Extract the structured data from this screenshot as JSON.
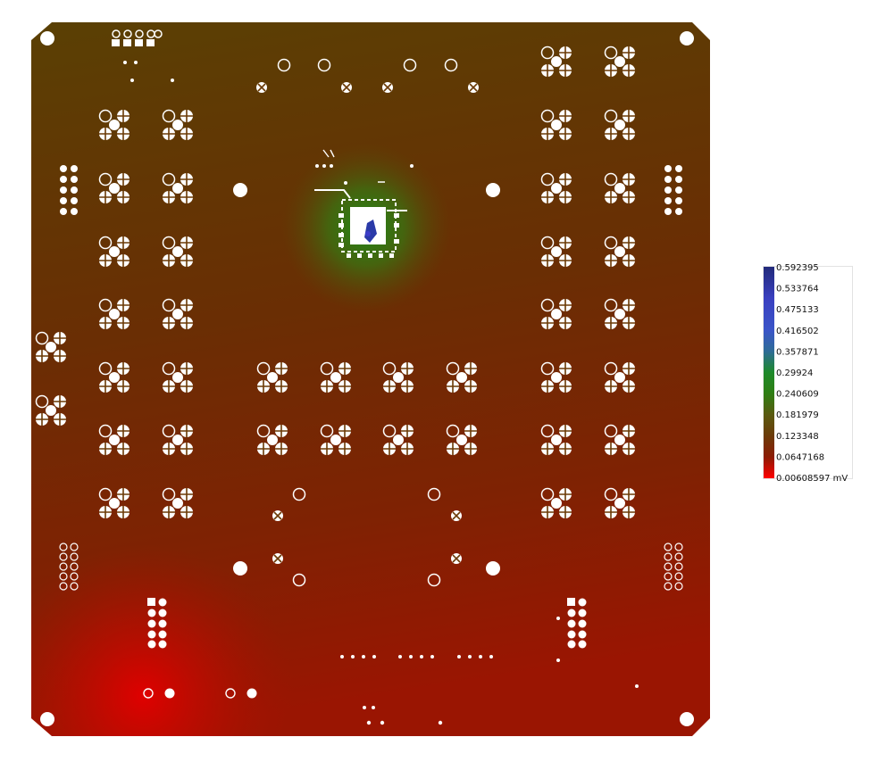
{
  "legend": {
    "ticks": [
      "0.592395",
      "0.533764",
      "0.475133",
      "0.416502",
      "0.357871",
      "0.29924",
      "0.240609",
      "0.181979",
      "0.123348",
      "0.0647168",
      "0.00608597 mV"
    ],
    "colors": [
      "#2a2f8c",
      "#3b3fb8",
      "#3558c6",
      "#2f6aa0",
      "#2e7b6a",
      "#1f8a22",
      "#3d7a18",
      "#5a5a10",
      "#6e3d0a",
      "#8a2206",
      "#e80000"
    ]
  },
  "board": {
    "background_top": "#5c3f05",
    "background_bottom": "#b01000",
    "hotspot_color": "#1e7a12",
    "chip_color": "#2a3aa8",
    "hole_color": "#ffffff"
  }
}
